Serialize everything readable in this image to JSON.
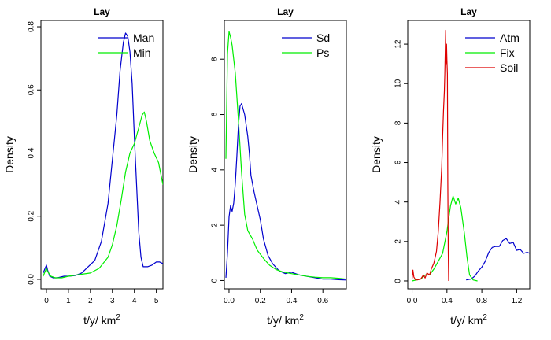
{
  "chart_data": [
    {
      "type": "line",
      "title": "Lay",
      "xlabel": "t/y/ km",
      "xlabel_sup": "2",
      "ylabel": "Density",
      "xlim": [
        -0.25,
        5.3
      ],
      "ylim": [
        -0.03,
        0.82
      ],
      "xticks": [
        0,
        1,
        2,
        3,
        4,
        5
      ],
      "xtick_labels": [
        "0",
        "1",
        "2",
        "3",
        "4",
        "5"
      ],
      "yticks": [
        0.0,
        0.2,
        0.4,
        0.6,
        0.8
      ],
      "ytick_labels": [
        "0.0",
        "0.2",
        "0.4",
        "0.6",
        "0.8"
      ],
      "legend_position": "top-right",
      "series": [
        {
          "name": "Man",
          "color": "#0000cd",
          "x": [
            -0.15,
            0.0,
            0.05,
            0.15,
            0.3,
            0.5,
            0.8,
            1.0,
            1.3,
            1.6,
            1.9,
            2.2,
            2.5,
            2.8,
            3.0,
            3.2,
            3.35,
            3.5,
            3.6,
            3.7,
            3.8,
            3.9,
            4.0,
            4.1,
            4.2,
            4.3,
            4.4,
            4.6,
            4.8,
            5.0,
            5.15,
            5.3
          ],
          "y": [
            0.02,
            0.045,
            0.03,
            0.01,
            0.005,
            0.005,
            0.01,
            0.01,
            0.012,
            0.02,
            0.04,
            0.06,
            0.12,
            0.24,
            0.38,
            0.52,
            0.66,
            0.75,
            0.78,
            0.77,
            0.72,
            0.62,
            0.45,
            0.3,
            0.15,
            0.07,
            0.04,
            0.04,
            0.045,
            0.055,
            0.055,
            0.05
          ]
        },
        {
          "name": "Min",
          "color": "#00ee00",
          "x": [
            -0.15,
            0.0,
            0.05,
            0.2,
            0.4,
            0.7,
            1.0,
            1.5,
            2.0,
            2.4,
            2.8,
            3.0,
            3.2,
            3.4,
            3.6,
            3.8,
            4.0,
            4.2,
            4.35,
            4.45,
            4.55,
            4.7,
            4.9,
            5.1,
            5.3
          ],
          "y": [
            0.01,
            0.035,
            0.025,
            0.01,
            0.005,
            0.005,
            0.01,
            0.015,
            0.02,
            0.035,
            0.07,
            0.11,
            0.17,
            0.25,
            0.34,
            0.4,
            0.43,
            0.48,
            0.52,
            0.53,
            0.5,
            0.44,
            0.4,
            0.37,
            0.3
          ]
        }
      ]
    },
    {
      "type": "line",
      "title": "Lay",
      "xlabel": "t/y/ km",
      "xlabel_sup": "2",
      "ylabel": "Density",
      "xlim": [
        -0.03,
        0.75
      ],
      "ylim": [
        -0.3,
        9.4
      ],
      "xticks": [
        0.0,
        0.2,
        0.4,
        0.6
      ],
      "xtick_labels": [
        "0.0",
        "0.2",
        "0.4",
        "0.6"
      ],
      "yticks": [
        0,
        2,
        4,
        6,
        8
      ],
      "ytick_labels": [
        "0",
        "2",
        "4",
        "6",
        "8"
      ],
      "legend_position": "top-right",
      "series": [
        {
          "name": "Sd",
          "color": "#0000cd",
          "x": [
            -0.02,
            -0.01,
            0.0,
            0.01,
            0.02,
            0.03,
            0.04,
            0.05,
            0.06,
            0.07,
            0.08,
            0.09,
            0.1,
            0.11,
            0.12,
            0.13,
            0.14,
            0.16,
            0.18,
            0.2,
            0.22,
            0.25,
            0.28,
            0.32,
            0.36,
            0.4,
            0.45,
            0.5,
            0.55,
            0.6,
            0.65,
            0.7,
            0.75
          ],
          "y": [
            0.1,
            1.0,
            2.3,
            2.7,
            2.5,
            2.8,
            3.5,
            4.5,
            5.6,
            6.3,
            6.4,
            6.2,
            6.0,
            5.6,
            5.2,
            4.6,
            3.8,
            3.2,
            2.7,
            2.2,
            1.5,
            0.9,
            0.6,
            0.35,
            0.25,
            0.3,
            0.2,
            0.15,
            0.1,
            0.05,
            0.05,
            0.03,
            0.02
          ]
        },
        {
          "name": "Ps",
          "color": "#00ee00",
          "x": [
            -0.02,
            -0.01,
            0.0,
            0.01,
            0.02,
            0.04,
            0.06,
            0.08,
            0.1,
            0.12,
            0.15,
            0.18,
            0.22,
            0.26,
            0.3,
            0.35,
            0.4,
            0.45,
            0.5,
            0.55,
            0.6,
            0.65,
            0.7,
            0.75
          ],
          "y": [
            4.4,
            8.2,
            9.0,
            8.8,
            8.5,
            7.5,
            5.8,
            3.9,
            2.4,
            1.8,
            1.5,
            1.1,
            0.8,
            0.55,
            0.4,
            0.3,
            0.25,
            0.2,
            0.15,
            0.12,
            0.1,
            0.1,
            0.08,
            0.05
          ]
        }
      ]
    },
    {
      "type": "line",
      "title": "Lay",
      "xlabel": "t/y/ km",
      "xlabel_sup": "2",
      "ylabel": "Density",
      "xlim": [
        -0.05,
        1.35
      ],
      "ylim": [
        -0.4,
        13.2
      ],
      "xticks": [
        0.0,
        0.4,
        0.8,
        1.2
      ],
      "xtick_labels": [
        "0.0",
        "0.4",
        "0.8",
        "1.2"
      ],
      "yticks": [
        0,
        2,
        4,
        6,
        8,
        10,
        12
      ],
      "ytick_labels": [
        "0",
        "2",
        "4",
        "6",
        "8",
        "10",
        "12"
      ],
      "legend_position": "top-right",
      "series": [
        {
          "name": "Atm",
          "color": "#0000cd",
          "x": [
            0.62,
            0.68,
            0.72,
            0.76,
            0.8,
            0.84,
            0.88,
            0.92,
            0.96,
            1.0,
            1.04,
            1.08,
            1.12,
            1.16,
            1.2,
            1.24,
            1.28,
            1.32,
            1.35
          ],
          "y": [
            0.05,
            0.1,
            0.25,
            0.5,
            0.7,
            1.0,
            1.45,
            1.7,
            1.75,
            1.75,
            2.05,
            2.15,
            1.9,
            1.95,
            1.55,
            1.6,
            1.4,
            1.45,
            1.4
          ]
        },
        {
          "name": "Fix",
          "color": "#00ee00",
          "x": [
            0.0,
            0.05,
            0.1,
            0.15,
            0.2,
            0.25,
            0.3,
            0.35,
            0.4,
            0.44,
            0.47,
            0.5,
            0.53,
            0.56,
            0.6,
            0.63,
            0.66,
            0.7,
            0.75
          ],
          "y": [
            0.0,
            0.05,
            0.1,
            0.3,
            0.3,
            0.6,
            1.0,
            1.4,
            2.5,
            3.8,
            4.3,
            3.9,
            4.2,
            3.7,
            2.4,
            1.2,
            0.3,
            0.05,
            0.0
          ]
        },
        {
          "name": "Soil",
          "color": "#dd0000",
          "x": [
            0.0,
            0.01,
            0.02,
            0.04,
            0.06,
            0.1,
            0.13,
            0.15,
            0.17,
            0.2,
            0.22,
            0.25,
            0.28,
            0.3,
            0.32,
            0.34,
            0.35,
            0.36,
            0.37,
            0.375,
            0.38,
            0.385,
            0.39,
            0.395,
            0.4,
            0.405,
            0.41,
            0.415,
            0.42
          ],
          "y": [
            0.1,
            0.55,
            0.2,
            0.05,
            0.05,
            0.1,
            0.3,
            0.15,
            0.4,
            0.3,
            0.6,
            0.9,
            1.5,
            2.5,
            4.0,
            5.8,
            7.3,
            8.6,
            9.6,
            10.5,
            11.5,
            12.7,
            11.0,
            12.0,
            11.2,
            10.5,
            5.0,
            1.5,
            0.0
          ]
        }
      ]
    }
  ]
}
